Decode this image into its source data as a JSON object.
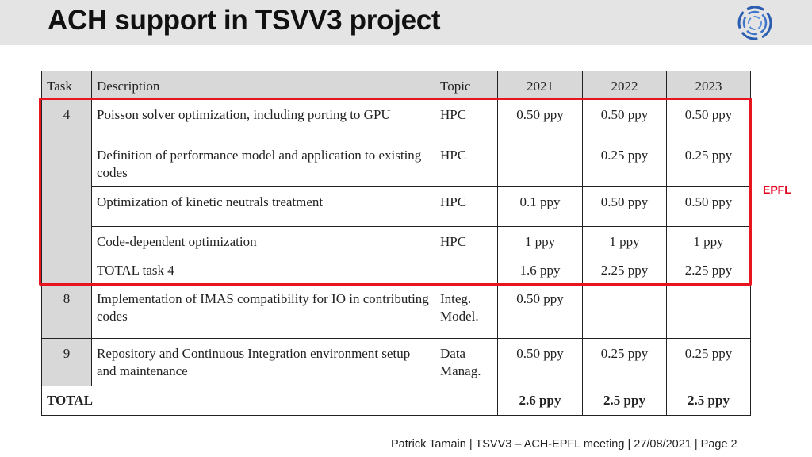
{
  "slide": {
    "title": "ACH support in TSVV3 project",
    "footer": "Patrick Tamain | TSVV3 – ACH-EPFL meeting | 27/08/2021  | Page 2",
    "highlight_label": "EPFL",
    "highlight_color": "#e8141f"
  },
  "table": {
    "headers": {
      "task": "Task",
      "description": "Description",
      "topic": "Topic",
      "y2021": "2021",
      "y2022": "2022",
      "y2023": "2023"
    },
    "task4": {
      "task": "4",
      "rows": [
        {
          "description": "Poisson solver optimization, including porting to GPU",
          "topic": "HPC",
          "y2021": "0.50 ppy",
          "y2022": "0.50 ppy",
          "y2023": "0.50 ppy"
        },
        {
          "description": "Definition of performance model and application to existing codes",
          "topic": "HPC",
          "y2021": "",
          "y2022": "0.25 ppy",
          "y2023": "0.25 ppy"
        },
        {
          "description": "Optimization of kinetic neutrals treatment",
          "topic": "HPC",
          "y2021": "0.1 ppy",
          "y2022": "0.50 ppy",
          "y2023": "0.50 ppy"
        },
        {
          "description": "Code-dependent optimization",
          "topic": "HPC",
          "y2021": "1 ppy",
          "y2022": "1 ppy",
          "y2023": "1 ppy"
        }
      ],
      "total": {
        "label": "TOTAL task 4",
        "y2021": "1.6 ppy",
        "y2022": "2.25 ppy",
        "y2023": "2.25 ppy"
      }
    },
    "task8": {
      "task": "8",
      "description": "Implementation of IMAS compatibility for IO in contributing codes",
      "topic": "Integ. Model.",
      "y2021": "0.50 ppy",
      "y2022": "",
      "y2023": ""
    },
    "task9": {
      "task": "9",
      "description": "Repository and Continuous Integration environment setup and maintenance",
      "topic": "Data Manag.",
      "y2021": "0.50 ppy",
      "y2022": "0.25 ppy",
      "y2023": "0.25 ppy"
    },
    "total": {
      "label": "TOTAL",
      "y2021": "2.6 ppy",
      "y2022": "2.5 ppy",
      "y2023": "2.5 ppy"
    }
  }
}
